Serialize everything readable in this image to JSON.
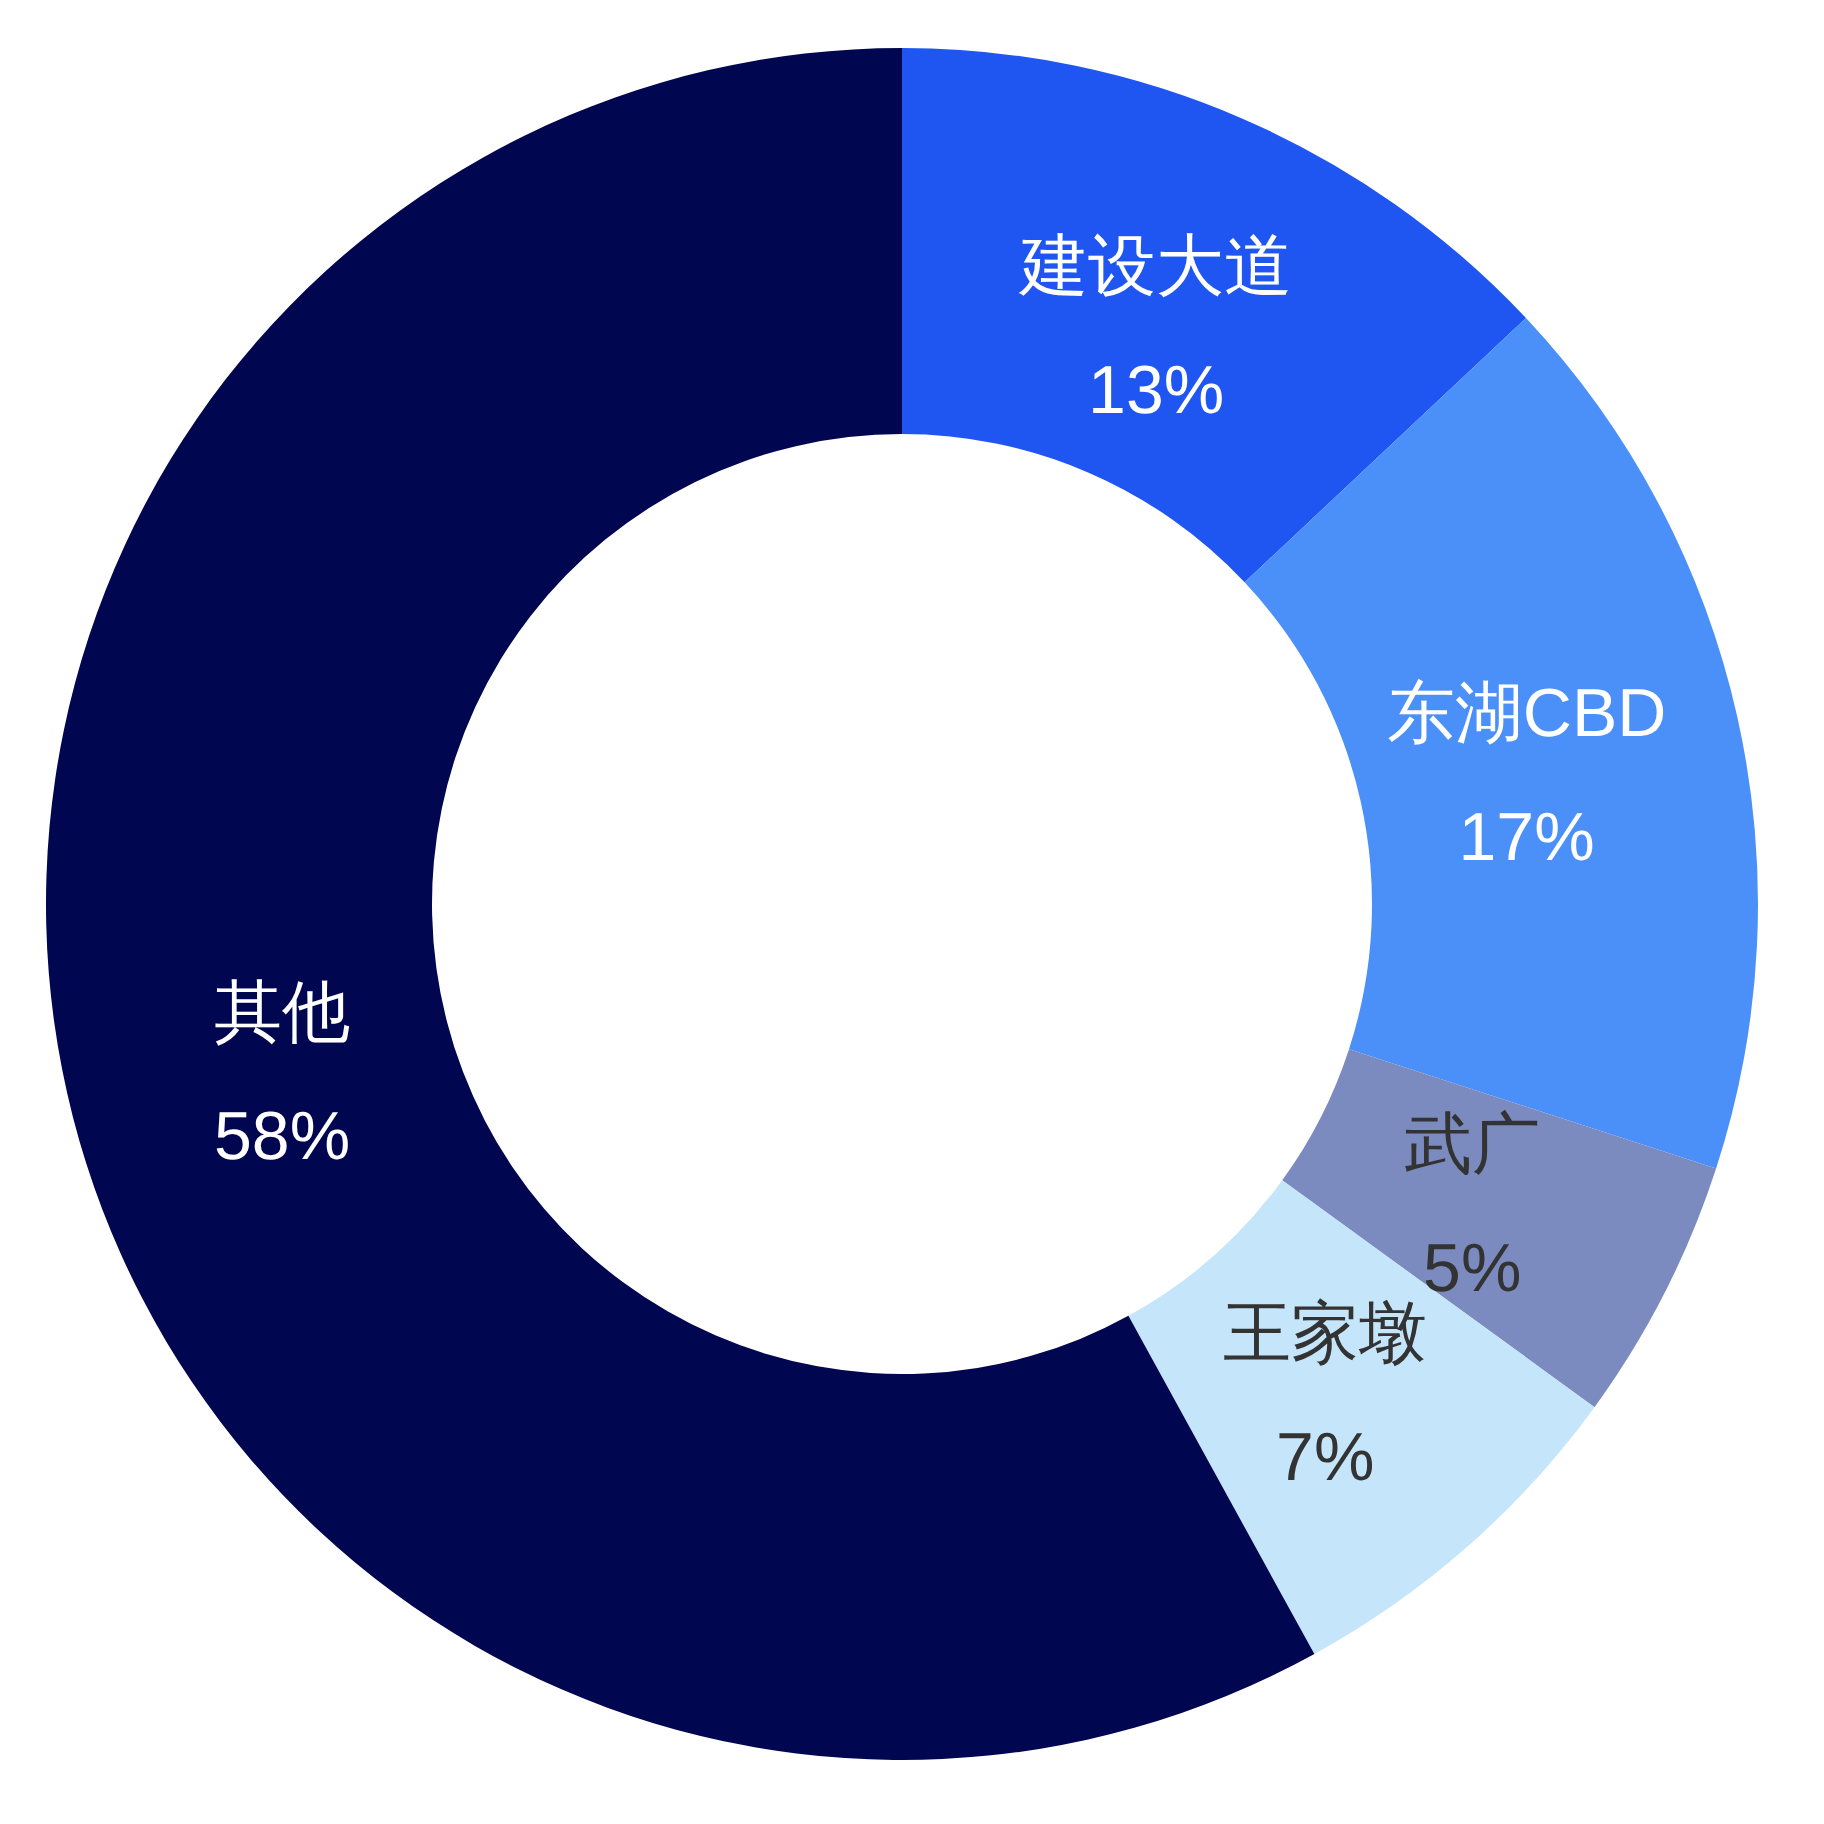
{
  "chart_data": {
    "type": "donut",
    "categories": [
      "建设大道",
      "东湖CBD",
      "武广",
      "王家墩",
      "其他"
    ],
    "values": [
      13,
      17,
      5,
      7,
      58
    ],
    "colors": [
      "#1f55f0",
      "#4a90f8",
      "#7b8bbf",
      "#c5e5fb",
      "#000650"
    ],
    "value_labels": [
      "13%",
      "17%",
      "5%",
      "7%",
      "58%"
    ]
  }
}
